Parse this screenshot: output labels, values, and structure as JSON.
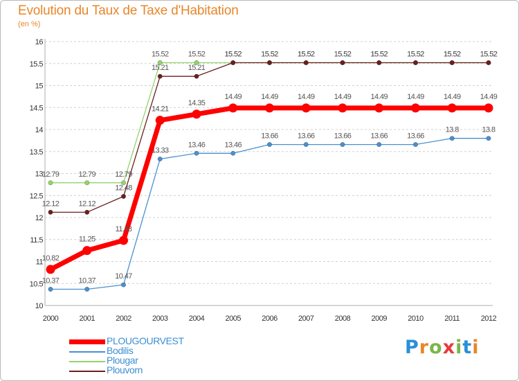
{
  "header": {
    "title": "Evolution du Taux de Taxe d'Habitation",
    "subtitle": "(en %)"
  },
  "logo": {
    "text": "Proxiti",
    "letters": [
      "P",
      "r",
      "o",
      "x",
      "i",
      "t",
      "i"
    ],
    "colors": [
      "#2a8fd6",
      "#e8862a",
      "#7ab648",
      "#e83a3a",
      "#7ab648",
      "#2a8fd6",
      "#e8862a"
    ]
  },
  "colors": {
    "accent": "#e8862a",
    "axis": "#c9c9c9",
    "grid": "#cfcfcf",
    "tick_label": "#333333",
    "data_label": "#555555"
  },
  "chart_data": {
    "type": "line",
    "title": "Evolution du Taux de Taxe d'Habitation",
    "subtitle": "(en %)",
    "xlabel": "",
    "ylabel": "",
    "x": [
      "2000",
      "2001",
      "2002",
      "2003",
      "2004",
      "2005",
      "2006",
      "2007",
      "2008",
      "2009",
      "2010",
      "2011",
      "2012"
    ],
    "ylim": [
      10,
      16
    ],
    "yticks": [
      "10",
      "10.5",
      "11",
      "11.5",
      "12",
      "12.5",
      "13",
      "13.5",
      "14",
      "14.5",
      "15",
      "15.5",
      "16"
    ],
    "grid": "horizontal dashed",
    "legend_position": "bottom-left",
    "series": [
      {
        "name": "Plougar",
        "color": "#92d46a",
        "values": [
          12.79,
          12.79,
          12.79,
          15.52,
          15.52,
          15.52,
          15.52,
          15.52,
          15.52,
          15.52,
          15.52,
          15.52,
          15.52
        ],
        "labels": [
          "12.79",
          "12.79",
          "12.79",
          "15.52",
          "15.52",
          "15.52",
          "15.52",
          "15.52",
          "15.52",
          "15.52",
          "15.52",
          "15.52",
          "15.52"
        ]
      },
      {
        "name": "Plouvorn",
        "color": "#6b1f1f",
        "values": [
          12.12,
          12.12,
          12.48,
          15.21,
          15.21,
          15.52,
          15.52,
          15.52,
          15.52,
          15.52,
          15.52,
          15.52,
          15.52
        ],
        "labels": [
          "12.12",
          "12.12",
          "12.48",
          "15.21",
          "15.21",
          "15.52",
          "15.52",
          "15.52",
          "15.52",
          "15.52",
          "15.52",
          "15.52",
          "15.52"
        ]
      },
      {
        "name": "Bodilis",
        "color": "#4a90cf",
        "values": [
          10.37,
          10.37,
          10.47,
          13.33,
          13.46,
          13.46,
          13.66,
          13.66,
          13.66,
          13.66,
          13.66,
          13.8,
          13.8
        ],
        "labels": [
          "10.37",
          "10.37",
          "10.47",
          "13.33",
          "13.46",
          "13.46",
          "13.66",
          "13.66",
          "13.66",
          "13.66",
          "13.66",
          "13.8",
          "13.8"
        ]
      },
      {
        "name": "PLOUGOURVEST",
        "color": "#ff0000",
        "values": [
          10.82,
          11.25,
          11.48,
          14.21,
          14.35,
          14.49,
          14.49,
          14.49,
          14.49,
          14.49,
          14.49,
          14.49,
          14.49
        ],
        "labels": [
          "10.82",
          "11.25",
          "11.48",
          "14.21",
          "14.35",
          "14.49",
          "14.49",
          "14.49",
          "14.49",
          "14.49",
          "14.49",
          "14.49",
          "14.49"
        ]
      }
    ],
    "legend": [
      {
        "name": "PLOUGOURVEST",
        "color": "#ff0000",
        "thick": true
      },
      {
        "name": "Bodilis",
        "color": "#4a90cf"
      },
      {
        "name": "Plougar",
        "color": "#92d46a"
      },
      {
        "name": "Plouvorn",
        "color": "#6b1f1f"
      }
    ]
  }
}
